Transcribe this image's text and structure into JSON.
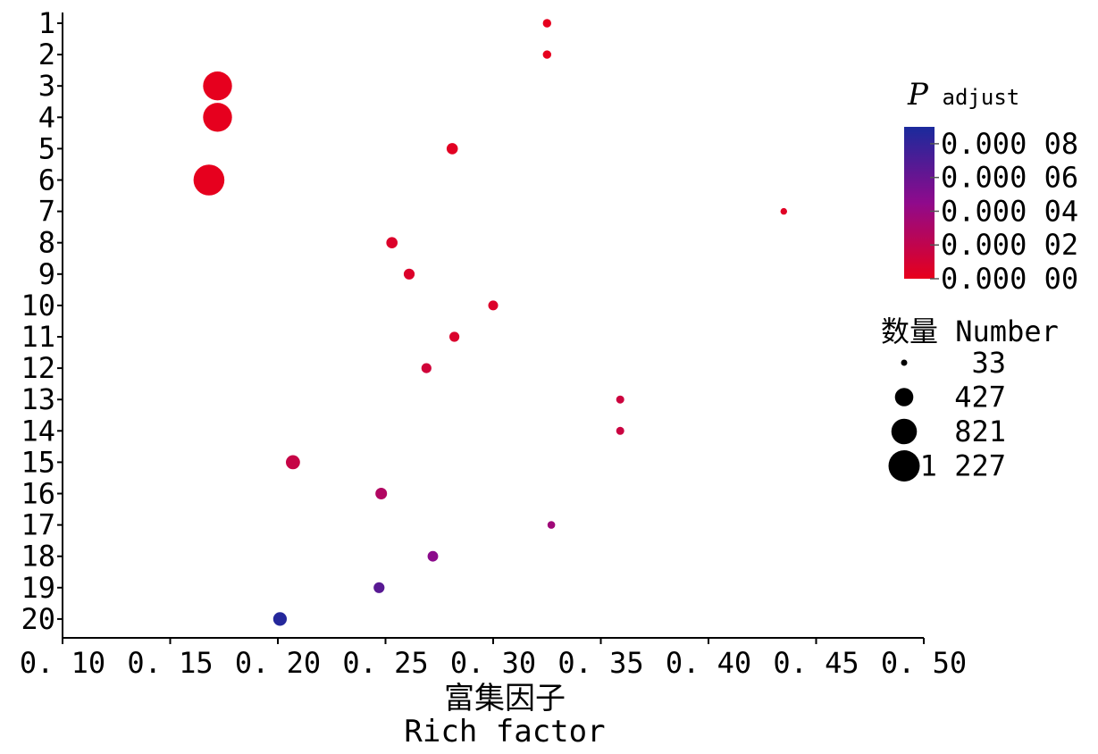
{
  "chart_data": {
    "type": "scatter",
    "title": "",
    "xlabel_zh": "富集因子",
    "xlabel": "Rich factor",
    "ylabel": "",
    "xlim": [
      0.1,
      0.5
    ],
    "x_ticks": [
      "0.10",
      "0.15",
      "0.20",
      "0.25",
      "0.30",
      "0.35",
      "0.40",
      "0.45",
      "0.50"
    ],
    "y_categories": [
      "1",
      "2",
      "3",
      "4",
      "5",
      "6",
      "7",
      "8",
      "9",
      "10",
      "11",
      "12",
      "13",
      "14",
      "15",
      "16",
      "17",
      "18",
      "19",
      "20"
    ],
    "points": [
      {
        "y": "1",
        "x": 0.325,
        "number": 90,
        "padjust": 1e-06
      },
      {
        "y": "2",
        "x": 0.325,
        "number": 90,
        "padjust": 1e-06
      },
      {
        "y": "3",
        "x": 0.172,
        "number": 1050,
        "padjust": 1e-06
      },
      {
        "y": "4",
        "x": 0.172,
        "number": 1050,
        "padjust": 1e-06
      },
      {
        "y": "5",
        "x": 0.281,
        "number": 160,
        "padjust": 3e-06
      },
      {
        "y": "6",
        "x": 0.168,
        "number": 1200,
        "padjust": 1e-06
      },
      {
        "y": "7",
        "x": 0.435,
        "number": 55,
        "padjust": 4e-06
      },
      {
        "y": "8",
        "x": 0.253,
        "number": 160,
        "padjust": 6e-06
      },
      {
        "y": "9",
        "x": 0.261,
        "number": 150,
        "padjust": 6e-06
      },
      {
        "y": "10",
        "x": 0.3,
        "number": 120,
        "padjust": 6e-06
      },
      {
        "y": "11",
        "x": 0.282,
        "number": 125,
        "padjust": 7e-06
      },
      {
        "y": "12",
        "x": 0.269,
        "number": 125,
        "padjust": 1.2e-05
      },
      {
        "y": "13",
        "x": 0.359,
        "number": 80,
        "padjust": 1.4e-05
      },
      {
        "y": "14",
        "x": 0.359,
        "number": 80,
        "padjust": 1.5e-05
      },
      {
        "y": "15",
        "x": 0.207,
        "number": 250,
        "padjust": 1.7e-05
      },
      {
        "y": "16",
        "x": 0.248,
        "number": 170,
        "padjust": 2.8e-05
      },
      {
        "y": "17",
        "x": 0.327,
        "number": 75,
        "padjust": 3.7e-05
      },
      {
        "y": "18",
        "x": 0.272,
        "number": 140,
        "padjust": 4.6e-05
      },
      {
        "y": "19",
        "x": 0.247,
        "number": 150,
        "padjust": 6.6e-05
      },
      {
        "y": "20",
        "x": 0.201,
        "number": 230,
        "padjust": 8.6e-05
      }
    ],
    "color_legend": {
      "title_main": "P",
      "title_sub": "adjust",
      "min": 0.0,
      "max": 9e-05,
      "tick_values": [
        8e-05,
        6e-05,
        4e-05,
        2e-05,
        0.0
      ],
      "tick_labels": [
        "0.000 08",
        "0.000 06",
        "0.000 04",
        "0.000 02",
        "0.000 00"
      ],
      "colors": [
        "#e8001b",
        "#8f0a8c",
        "#1a2a9c"
      ]
    },
    "size_legend": {
      "title": "数量 Number",
      "values": [
        33,
        427,
        821,
        1227
      ],
      "labels": [
        "33",
        "427",
        "821",
        "1 227"
      ]
    },
    "grid": false,
    "legend_placement": "right"
  }
}
